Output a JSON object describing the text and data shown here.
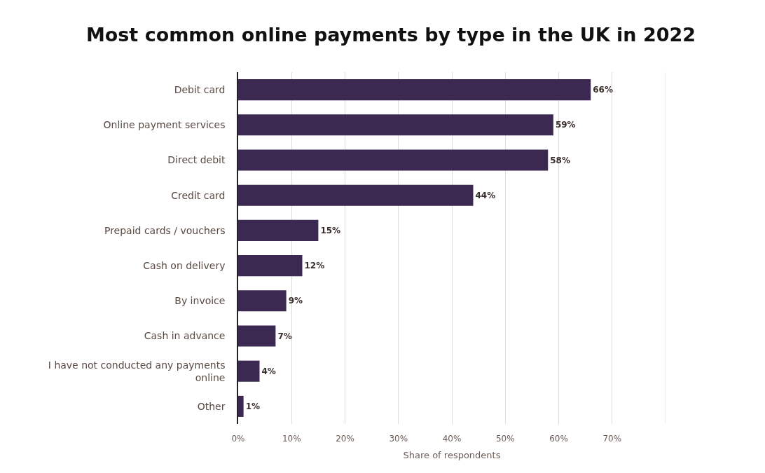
{
  "chart_data": {
    "type": "bar",
    "orientation": "horizontal",
    "title": "Most common online payments by type in the UK in 2022",
    "xlabel": "Share of respondents",
    "categories": [
      "Debit card",
      "Online payment services",
      "Direct debit",
      "Credit card",
      "Prepaid cards / vouchers",
      "Cash on delivery",
      "By invoice",
      "Cash in advance",
      "I have not conducted any payments online",
      "Other"
    ],
    "values": [
      66,
      59,
      58,
      44,
      15,
      12,
      9,
      7,
      4,
      1
    ],
    "value_labels": [
      "66%",
      "59%",
      "58%",
      "44%",
      "15%",
      "12%",
      "9%",
      "7%",
      "4%",
      "1%"
    ],
    "color": "#3b2951",
    "xlim": [
      0,
      80
    ],
    "xticks": [
      {
        "value": 0,
        "label": "0%"
      },
      {
        "value": 10,
        "label": "10%"
      },
      {
        "value": 20,
        "label": "20%"
      },
      {
        "value": 30,
        "label": "30%"
      },
      {
        "value": 40,
        "label": "40%"
      },
      {
        "value": 50,
        "label": "50%"
      },
      {
        "value": 60,
        "label": "60%"
      },
      {
        "value": 70,
        "label": "70%"
      },
      {
        "value": 80,
        "label": null
      }
    ],
    "grid": "x"
  }
}
